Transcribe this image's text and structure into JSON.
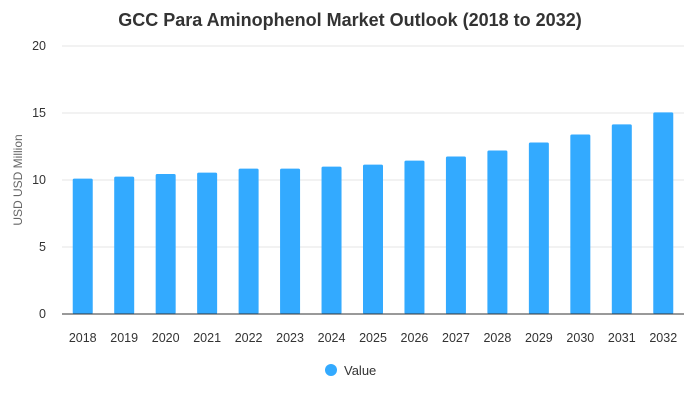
{
  "chart_data": {
    "type": "bar",
    "title": "GCC Para Aminophenol Market Outlook (2018 to 2032)",
    "xlabel": "",
    "ylabel": "USD USD Million",
    "categories": [
      "2018",
      "2019",
      "2020",
      "2021",
      "2022",
      "2023",
      "2024",
      "2025",
      "2026",
      "2027",
      "2028",
      "2029",
      "2030",
      "2031",
      "2032"
    ],
    "series": [
      {
        "name": "Value",
        "values": [
          10.1,
          10.25,
          10.45,
          10.55,
          10.85,
          10.85,
          11.0,
          11.15,
          11.45,
          11.75,
          12.2,
          12.8,
          13.4,
          14.15,
          15.05
        ],
        "color": "#33aaff"
      }
    ],
    "ylim": [
      0,
      20
    ],
    "yticks": [
      0,
      5,
      10,
      15,
      20
    ],
    "grid": true,
    "legend": "bottom-center"
  }
}
